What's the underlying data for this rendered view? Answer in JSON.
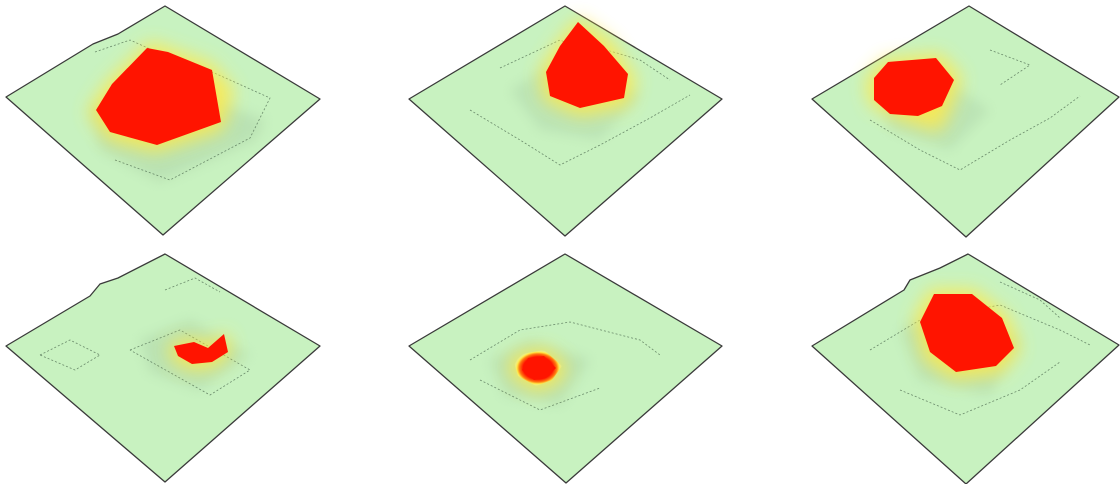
{
  "colors": {
    "background": "#ffffff",
    "plane_fill": "#c8f2c0",
    "plane_stroke": "#3a3a3a",
    "footprint_stroke": "#6a8a6a",
    "shadow_tint": "#a9cfa4",
    "heat_core": "#ff1a00",
    "heat_mid": "#ff6a00",
    "heat_edge": "#ffe94a",
    "heat_halo": "#fffbb0"
  },
  "panels": [
    {
      "id": "panel-1",
      "hotspot": "large-left"
    },
    {
      "id": "panel-2",
      "hotspot": "top-center"
    },
    {
      "id": "panel-3",
      "hotspot": "upper-left"
    },
    {
      "id": "panel-4",
      "hotspot": "small-right"
    },
    {
      "id": "panel-5",
      "hotspot": "small-center"
    },
    {
      "id": "panel-6",
      "hotspot": "medium-center"
    }
  ]
}
